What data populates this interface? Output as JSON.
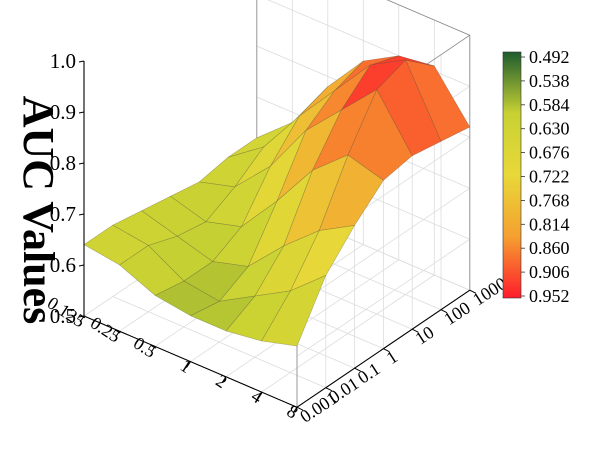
{
  "chart_data": {
    "type": "surface",
    "zlabel": "AUC Values",
    "x_ticks": [
      "0.125",
      "0.25",
      "0.5",
      "1",
      "2",
      "4",
      "8"
    ],
    "y_ticks": [
      "0.001",
      "0.01",
      "0.1",
      "1",
      "10",
      "100",
      "1000"
    ],
    "z_ticks": [
      "0.5",
      "0.6",
      "0.7",
      "0.8",
      "0.9",
      "1.0"
    ],
    "zlim": [
      0.5,
      1.0
    ],
    "colorbar": {
      "ticks": [
        "0.492",
        "0.538",
        "0.584",
        "0.630",
        "0.676",
        "0.722",
        "0.768",
        "0.814",
        "0.860",
        "0.906",
        "0.952"
      ],
      "colors": [
        "#1e5b2e",
        "#c8d233",
        "#e8d838",
        "#f5a030",
        "#ff1c2c"
      ]
    },
    "z_values": [
      [
        0.64,
        0.63,
        0.6,
        0.59,
        0.59,
        0.6,
        0.62
      ],
      [
        0.64,
        0.63,
        0.59,
        0.58,
        0.62,
        0.66,
        0.72
      ],
      [
        0.63,
        0.61,
        0.59,
        0.61,
        0.68,
        0.74,
        0.78
      ],
      [
        0.62,
        0.6,
        0.62,
        0.7,
        0.79,
        0.85,
        0.83
      ],
      [
        0.61,
        0.63,
        0.7,
        0.8,
        0.87,
        0.94,
        0.84
      ],
      [
        0.62,
        0.67,
        0.76,
        0.84,
        0.92,
        0.96,
        0.83
      ],
      [
        0.62,
        0.68,
        0.78,
        0.86,
        0.9,
        0.91,
        0.82
      ]
    ]
  }
}
